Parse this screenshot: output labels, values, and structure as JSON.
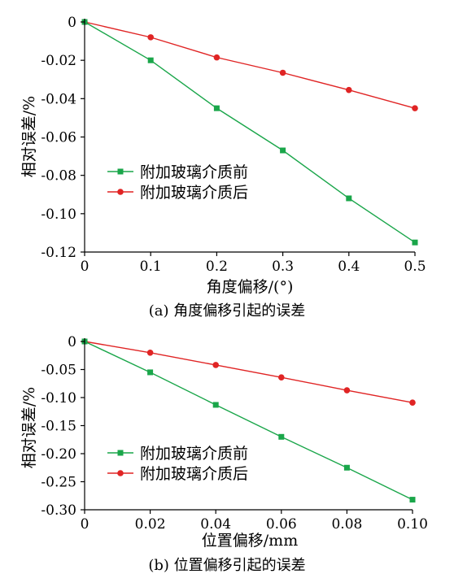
{
  "chart_data": [
    {
      "type": "line",
      "caption": "(a) 角度偏移引起的误差",
      "xlabel": "角度偏移/(°)",
      "ylabel": "相对误差/%",
      "x": [
        0,
        0.1,
        0.2,
        0.3,
        0.4,
        0.5
      ],
      "x_ticks": [
        "0",
        "0.1",
        "0.2",
        "0.3",
        "0.4",
        "0.5"
      ],
      "xlim": [
        0,
        0.5
      ],
      "y_ticks": [
        "0",
        "-0.02",
        "-0.04",
        "-0.06",
        "-0.08",
        "-0.10",
        "-0.12"
      ],
      "ylim": [
        -0.12,
        0
      ],
      "grid": false,
      "legend_position": "center-left",
      "series": [
        {
          "name": "附加玻璃介质前",
          "color": "#1aa64a",
          "marker": "square",
          "values": [
            0,
            -0.02,
            -0.045,
            -0.067,
            -0.092,
            -0.115
          ]
        },
        {
          "name": "附加玻璃介质后",
          "color": "#e02424",
          "marker": "circle",
          "values": [
            0,
            -0.008,
            -0.0185,
            -0.0265,
            -0.0355,
            -0.045
          ]
        }
      ]
    },
    {
      "type": "line",
      "caption": "(b) 位置偏移引起的误差",
      "xlabel": "位置偏移/mm",
      "ylabel": "相对误差/%",
      "x": [
        0,
        0.02,
        0.04,
        0.06,
        0.08,
        0.1
      ],
      "x_ticks": [
        "0",
        "0.02",
        "0.04",
        "0.06",
        "0.08",
        "0.10"
      ],
      "xlim": [
        0,
        0.1
      ],
      "y_ticks": [
        "0",
        "-0.05",
        "-0.10",
        "-0.15",
        "-0.20",
        "-0.25",
        "-0.30"
      ],
      "ylim": [
        -0.3,
        0
      ],
      "grid": false,
      "legend_position": "lower-left",
      "series": [
        {
          "name": "附加玻璃介质前",
          "color": "#1aa64a",
          "marker": "square",
          "values": [
            0,
            -0.055,
            -0.113,
            -0.17,
            -0.225,
            -0.282
          ]
        },
        {
          "name": "附加玻璃介质后",
          "color": "#e02424",
          "marker": "circle",
          "values": [
            0,
            -0.02,
            -0.042,
            -0.064,
            -0.087,
            -0.109
          ]
        }
      ]
    }
  ]
}
